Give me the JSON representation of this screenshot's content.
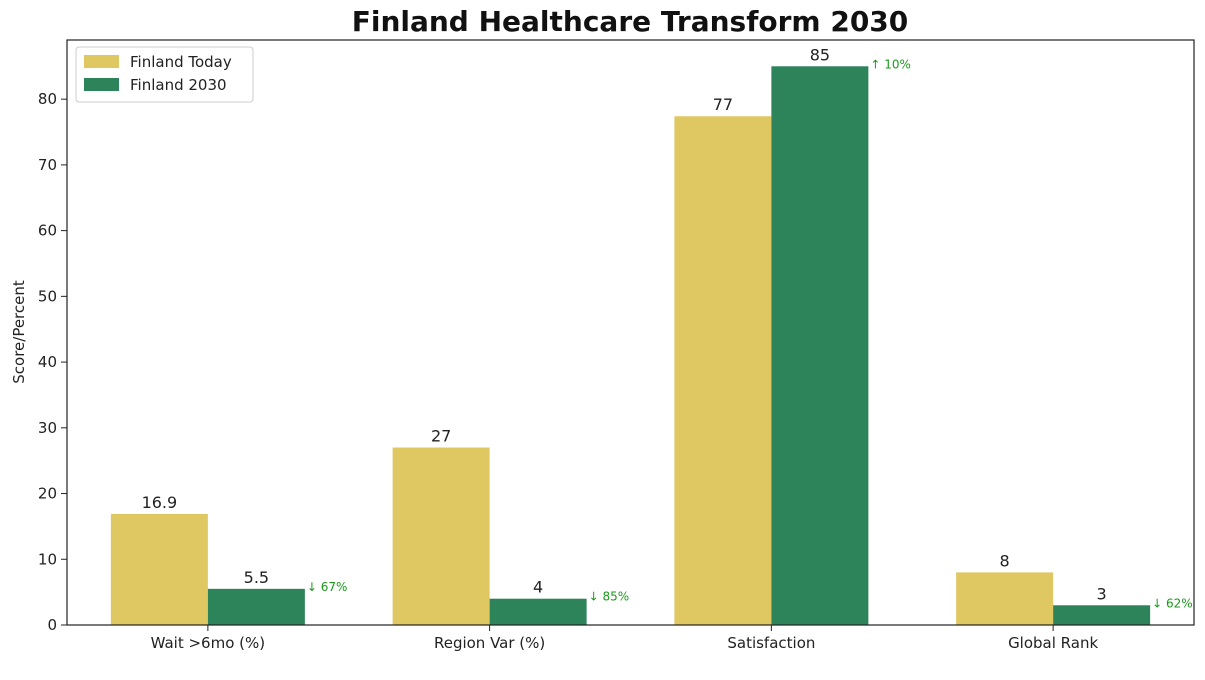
{
  "chart_data": {
    "type": "bar",
    "title": "Finland Healthcare Transform 2030",
    "ylabel": "Score/Percent",
    "xlabel": "",
    "ylim": [
      0,
      89
    ],
    "yticks": [
      "0",
      "10",
      "20",
      "30",
      "40",
      "50",
      "60",
      "70",
      "80"
    ],
    "categories": [
      "Wait >6mo (%)",
      "Region Var (%)",
      "Satisfaction",
      "Global Rank"
    ],
    "series": [
      {
        "name": "Finland Today",
        "color": "#dfc761",
        "values": [
          16.9,
          27,
          77.4,
          8
        ],
        "labels": [
          "16.9",
          "27",
          "77",
          "8"
        ]
      },
      {
        "name": "Finland 2030",
        "color": "#2e845a",
        "values": [
          5.5,
          4,
          85,
          3
        ],
        "labels": [
          "5.5",
          "4",
          "85",
          "3"
        ]
      }
    ],
    "changes": [
      "↓ 67%",
      "↓ 85%",
      "↑ 10%",
      "↓ 62%"
    ],
    "change_color": "#1a9a1a",
    "legend": "upper-left",
    "grid": false
  }
}
